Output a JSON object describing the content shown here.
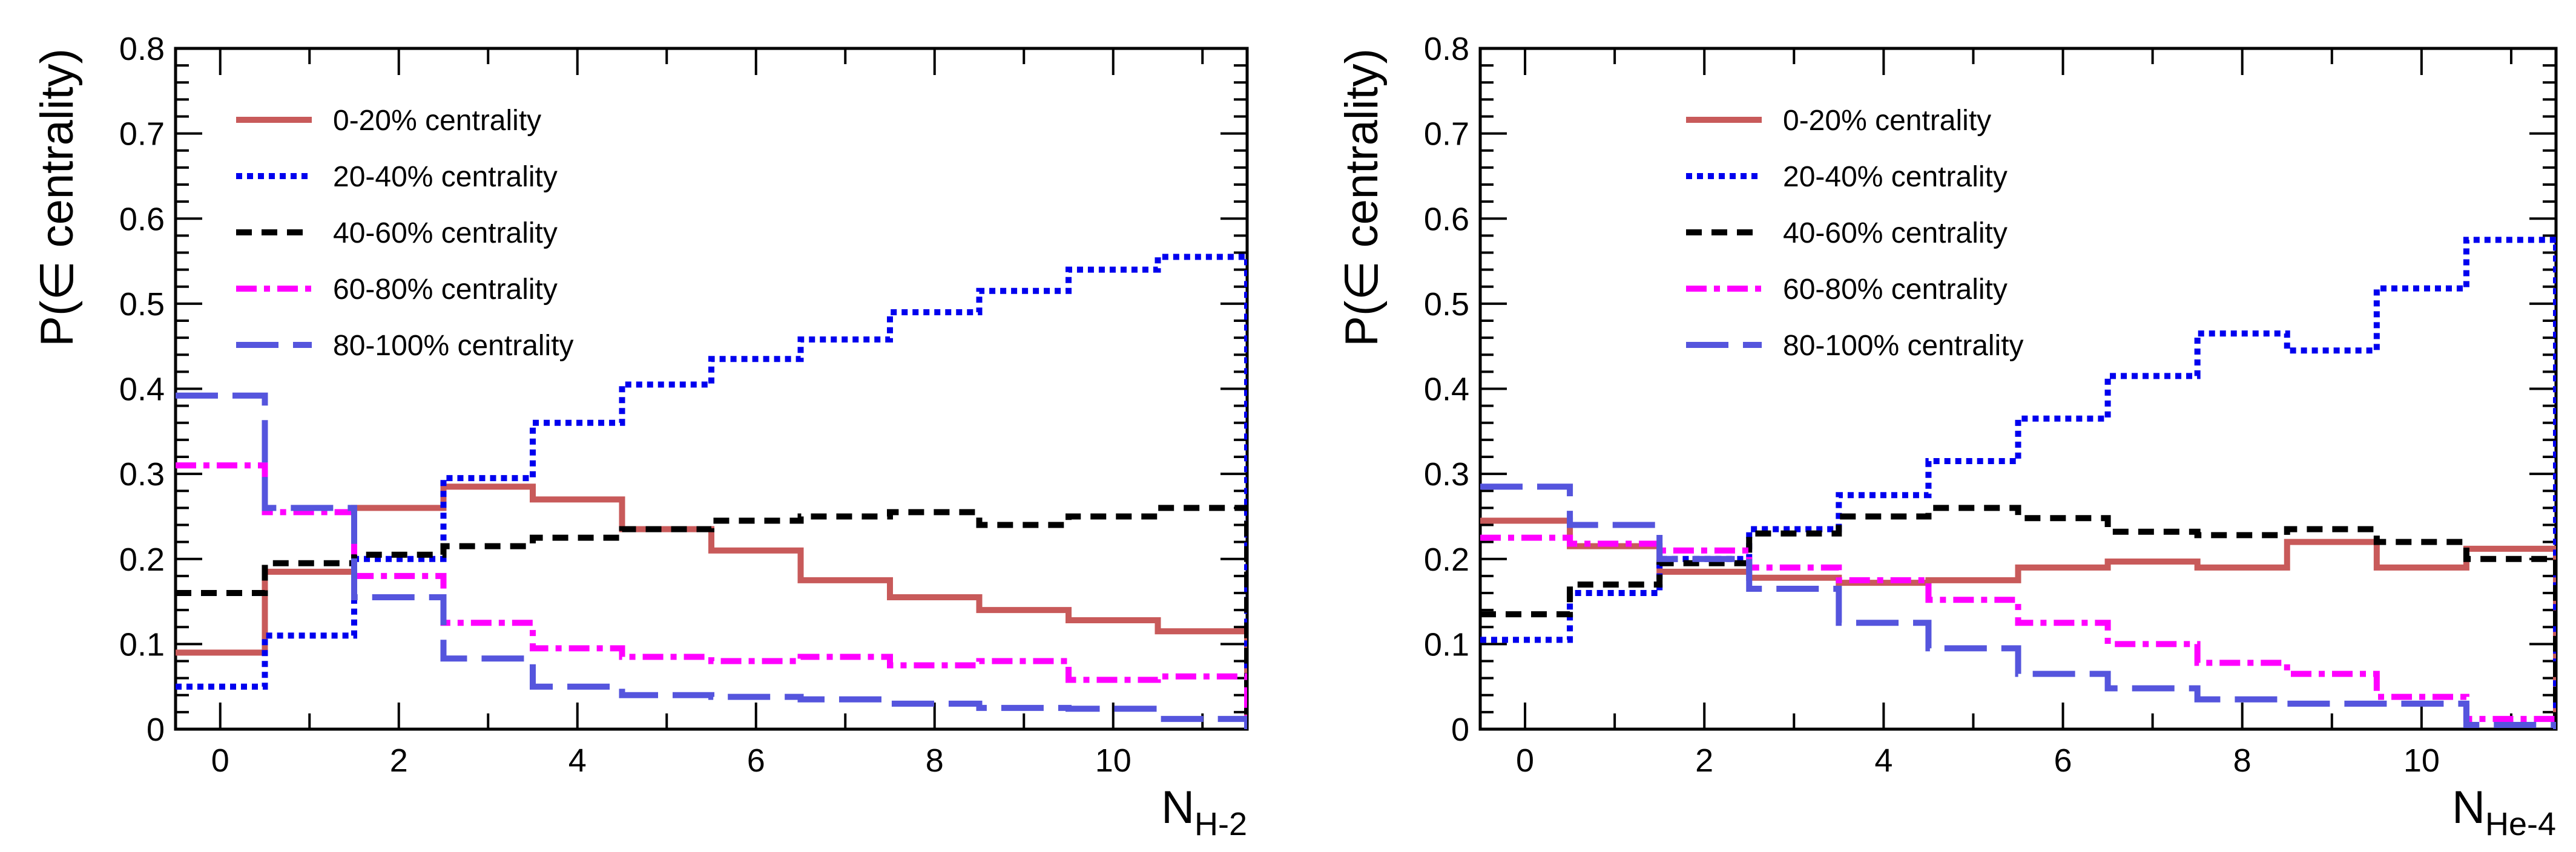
{
  "chart_data": [
    {
      "type": "line",
      "step": true,
      "panel": "left",
      "title": "",
      "xlabel": "N",
      "xlabel_sub": "H-2",
      "ylabel": "P(∈ centrality)",
      "xlim": [
        -0.5,
        11.5
      ],
      "ylim": [
        0,
        0.8
      ],
      "xticks": [
        0,
        2,
        4,
        6,
        8,
        10
      ],
      "yticks": [
        0,
        0.1,
        0.2,
        0.3,
        0.4,
        0.5,
        0.6,
        0.7,
        0.8
      ],
      "ytick_labels": [
        "0",
        "0.1",
        "0.2",
        "0.3",
        "0.4",
        "0.5",
        "0.6",
        "0.7",
        "0.8"
      ],
      "xtick_labels": [
        "0",
        "2",
        "4",
        "6",
        "8",
        "10"
      ],
      "bin_edges": [
        -0.5,
        0.5,
        1.5,
        2.5,
        3.5,
        4.5,
        5.5,
        6.5,
        7.5,
        8.5,
        9.5,
        10.5,
        11.5
      ],
      "legend_position": "top-left",
      "series": [
        {
          "name": "0-20% centrality",
          "color": "#c85a5a",
          "style": "solid",
          "values": [
            0.09,
            0.185,
            0.26,
            0.285,
            0.27,
            0.235,
            0.21,
            0.175,
            0.155,
            0.14,
            0.128,
            0.115
          ]
        },
        {
          "name": "20-40% centrality",
          "color": "#0000ee",
          "style": "dotted",
          "values": [
            0.05,
            0.11,
            0.2,
            0.295,
            0.36,
            0.405,
            0.435,
            0.458,
            0.49,
            0.515,
            0.54,
            0.555
          ]
        },
        {
          "name": "40-60% centrality",
          "color": "#000000",
          "style": "dashed",
          "values": [
            0.16,
            0.195,
            0.205,
            0.215,
            0.225,
            0.235,
            0.245,
            0.25,
            0.255,
            0.24,
            0.25,
            0.26
          ]
        },
        {
          "name": "60-80% centrality",
          "color": "#ff00ff",
          "style": "dashdot",
          "values": [
            0.31,
            0.255,
            0.18,
            0.125,
            0.095,
            0.085,
            0.08,
            0.085,
            0.075,
            0.08,
            0.058,
            0.062
          ]
        },
        {
          "name": "80-100% centrality",
          "color": "#5555dd",
          "style": "longdash",
          "values": [
            0.392,
            0.26,
            0.155,
            0.083,
            0.05,
            0.04,
            0.038,
            0.035,
            0.03,
            0.025,
            0.024,
            0.012
          ]
        }
      ]
    },
    {
      "type": "line",
      "step": true,
      "panel": "right",
      "title": "",
      "xlabel": "N",
      "xlabel_sub": "He-4",
      "ylabel": "P(∈ centrality)",
      "xlim": [
        -0.5,
        11.5
      ],
      "ylim": [
        0,
        0.8
      ],
      "xticks": [
        0,
        2,
        4,
        6,
        8,
        10
      ],
      "yticks": [
        0,
        0.1,
        0.2,
        0.3,
        0.4,
        0.5,
        0.6,
        0.7,
        0.8
      ],
      "ytick_labels": [
        "0",
        "0.1",
        "0.2",
        "0.3",
        "0.4",
        "0.5",
        "0.6",
        "0.7",
        "0.8"
      ],
      "xtick_labels": [
        "0",
        "2",
        "4",
        "6",
        "8",
        "10"
      ],
      "bin_edges": [
        -0.5,
        0.5,
        1.5,
        2.5,
        3.5,
        4.5,
        5.5,
        6.5,
        7.5,
        8.5,
        9.5,
        10.5,
        11.5
      ],
      "legend_position": "top-center",
      "series": [
        {
          "name": "0-20% centrality",
          "color": "#c85a5a",
          "style": "solid",
          "values": [
            0.245,
            0.215,
            0.185,
            0.178,
            0.172,
            0.175,
            0.19,
            0.197,
            0.19,
            0.22,
            0.19,
            0.212
          ]
        },
        {
          "name": "20-40% centrality",
          "color": "#0000ee",
          "style": "dotted",
          "values": [
            0.105,
            0.16,
            0.2,
            0.235,
            0.275,
            0.315,
            0.365,
            0.415,
            0.465,
            0.445,
            0.518,
            0.575
          ]
        },
        {
          "name": "40-60% centrality",
          "color": "#000000",
          "style": "dashed",
          "values": [
            0.135,
            0.17,
            0.195,
            0.23,
            0.25,
            0.26,
            0.248,
            0.232,
            0.228,
            0.235,
            0.22,
            0.2
          ]
        },
        {
          "name": "60-80% centrality",
          "color": "#ff00ff",
          "style": "dashdot",
          "values": [
            0.225,
            0.218,
            0.21,
            0.19,
            0.175,
            0.152,
            0.125,
            0.1,
            0.078,
            0.065,
            0.038,
            0.012
          ]
        },
        {
          "name": "80-100% centrality",
          "color": "#5555dd",
          "style": "longdash",
          "values": [
            0.285,
            0.24,
            0.2,
            0.165,
            0.125,
            0.095,
            0.065,
            0.048,
            0.035,
            0.03,
            0.03,
            0.005
          ]
        }
      ]
    }
  ]
}
